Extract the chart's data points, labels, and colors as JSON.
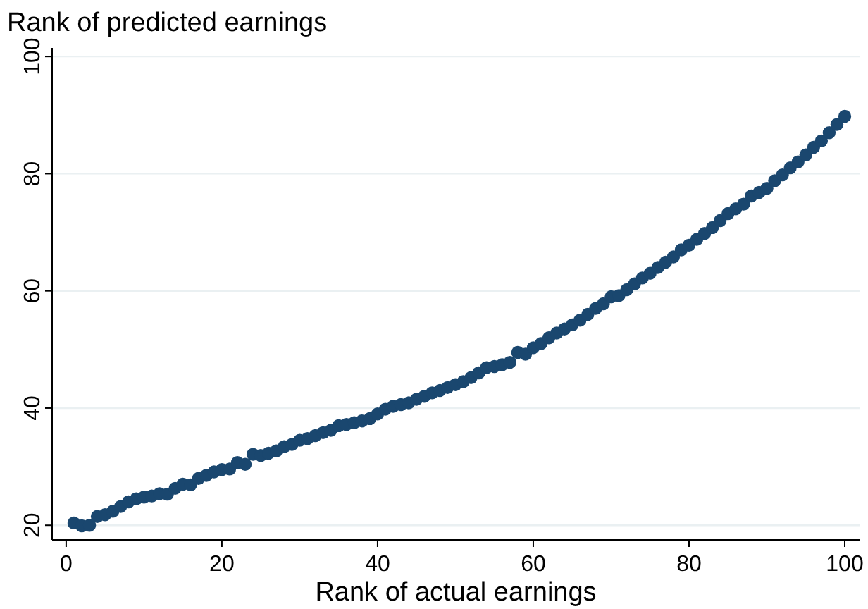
{
  "chart_data": {
    "type": "scatter",
    "title": "Rank of predicted earnings",
    "xlabel": "Rank of actual earnings",
    "x": [
      1,
      2,
      3,
      4,
      5,
      6,
      7,
      8,
      9,
      10,
      11,
      12,
      13,
      14,
      15,
      16,
      17,
      18,
      19,
      20,
      21,
      22,
      23,
      24,
      25,
      26,
      27,
      28,
      29,
      30,
      31,
      32,
      33,
      34,
      35,
      36,
      37,
      38,
      39,
      40,
      41,
      42,
      43,
      44,
      45,
      46,
      47,
      48,
      49,
      50,
      51,
      52,
      53,
      54,
      55,
      56,
      57,
      58,
      59,
      60,
      61,
      62,
      63,
      64,
      65,
      66,
      67,
      68,
      69,
      70,
      71,
      72,
      73,
      74,
      75,
      76,
      77,
      78,
      79,
      80,
      81,
      82,
      83,
      84,
      85,
      86,
      87,
      88,
      89,
      90,
      91,
      92,
      93,
      94,
      95,
      96,
      97,
      98,
      99,
      100
    ],
    "series": [
      {
        "color": "#1a476f",
        "values": [
          20.4,
          19.9,
          20.0,
          21.5,
          21.8,
          22.4,
          23.2,
          24.0,
          24.5,
          24.8,
          25.0,
          25.4,
          25.3,
          26.3,
          27.0,
          26.9,
          28.0,
          28.5,
          29.1,
          29.5,
          29.6,
          30.7,
          30.4,
          32.1,
          31.9,
          32.3,
          32.7,
          33.4,
          33.8,
          34.5,
          34.8,
          35.3,
          35.8,
          36.2,
          37.0,
          37.2,
          37.5,
          37.8,
          38.2,
          39.0,
          39.8,
          40.3,
          40.6,
          40.9,
          41.5,
          42.0,
          42.6,
          43.0,
          43.5,
          44.0,
          44.5,
          45.2,
          46.0,
          46.9,
          47.1,
          47.4,
          47.8,
          49.5,
          49.2,
          50.3,
          51.0,
          52.0,
          52.8,
          53.5,
          54.2,
          55.0,
          56.0,
          57.0,
          57.8,
          59.0,
          59.2,
          60.2,
          61.2,
          62.2,
          63.0,
          64.0,
          64.9,
          65.8,
          67.0,
          67.8,
          68.8,
          69.8,
          70.8,
          72.0,
          73.2,
          74.0,
          74.8,
          76.2,
          76.8,
          77.5,
          78.8,
          79.8,
          81.0,
          82.0,
          83.2,
          84.5,
          85.6,
          87.0,
          88.4,
          89.8
        ]
      }
    ],
    "xlim": [
      -1.8,
      101.9
    ],
    "ylim": [
      17.5,
      100.5
    ],
    "xticks": [
      0,
      20,
      40,
      60,
      80,
      100
    ],
    "yticks": [
      20,
      40,
      60,
      80,
      100
    ],
    "grid": "y",
    "marker": "circle"
  }
}
